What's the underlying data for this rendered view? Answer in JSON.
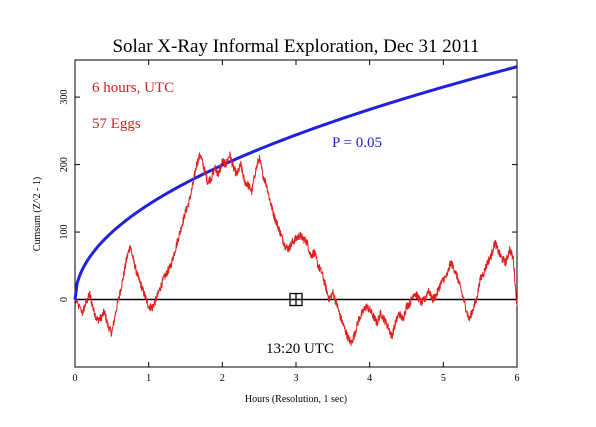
{
  "chart_data": {
    "type": "line",
    "title": "Solar X-Ray Informal Exploration, Dec 31 2011",
    "xlabel": "Hours (Resolution, 1 sec)",
    "ylabel": "Cumsum (Z^2 - 1)",
    "xlim": [
      0,
      6
    ],
    "ylim": [
      -100,
      355
    ],
    "x_ticks": [
      "0",
      "1",
      "2",
      "3",
      "4",
      "5",
      "6"
    ],
    "y_ticks": [
      "0",
      "100",
      "200",
      "300"
    ],
    "grid": false,
    "annotations": {
      "hours": "6 hours, UTC",
      "eggs": "57 Eggs",
      "p_label": "P = 0.05",
      "time_label": "13:20 UTC"
    },
    "marker": {
      "x": 3,
      "y": 0
    },
    "series": [
      {
        "color": "#e02020",
        "x": [
          0,
          0.1,
          0.15,
          0.2,
          0.25,
          0.3,
          0.35,
          0.4,
          0.45,
          0.5,
          0.55,
          0.6,
          0.65,
          0.7,
          0.75,
          0.8,
          0.85,
          0.9,
          0.95,
          1.0,
          1.05,
          1.1,
          1.15,
          1.2,
          1.25,
          1.3,
          1.35,
          1.4,
          1.45,
          1.5,
          1.55,
          1.6,
          1.65,
          1.7,
          1.75,
          1.8,
          1.85,
          1.9,
          1.95,
          2.0,
          2.05,
          2.1,
          2.15,
          2.2,
          2.25,
          2.3,
          2.35,
          2.4,
          2.45,
          2.5,
          2.55,
          2.6,
          2.65,
          2.7,
          2.75,
          2.8,
          2.85,
          2.9,
          2.95,
          3.0,
          3.05,
          3.1,
          3.15,
          3.2,
          3.25,
          3.3,
          3.35,
          3.4,
          3.45,
          3.5,
          3.55,
          3.6,
          3.65,
          3.7,
          3.75,
          3.8,
          3.85,
          3.9,
          3.95,
          4.0,
          4.05,
          4.1,
          4.15,
          4.2,
          4.25,
          4.3,
          4.35,
          4.4,
          4.45,
          4.5,
          4.55,
          4.6,
          4.65,
          4.7,
          4.75,
          4.8,
          4.85,
          4.9,
          4.95,
          5.0,
          5.05,
          5.1,
          5.15,
          5.2,
          5.25,
          5.3,
          5.35,
          5.4,
          5.45,
          5.5,
          5.55,
          5.6,
          5.65,
          5.7,
          5.75,
          5.8,
          5.85,
          5.9,
          5.95,
          6.0
        ],
        "values": [
          0,
          -20,
          -5,
          8,
          -15,
          -30,
          -28,
          -18,
          -40,
          -50,
          -20,
          5,
          30,
          60,
          80,
          55,
          35,
          20,
          5,
          -10,
          -12,
          0,
          15,
          30,
          40,
          50,
          70,
          90,
          110,
          130,
          145,
          170,
          200,
          215,
          195,
          175,
          180,
          195,
          185,
          205,
          200,
          215,
          195,
          185,
          200,
          175,
          170,
          160,
          190,
          210,
          185,
          170,
          145,
          125,
          110,
          95,
          80,
          75,
          85,
          90,
          95,
          90,
          85,
          65,
          70,
          50,
          40,
          20,
          0,
          10,
          -5,
          -25,
          -40,
          -55,
          -65,
          -50,
          -30,
          -20,
          -10,
          -15,
          -25,
          -35,
          -20,
          -30,
          -40,
          -55,
          -35,
          -20,
          -30,
          -10,
          -5,
          10,
          5,
          -5,
          0,
          15,
          0,
          5,
          20,
          30,
          35,
          55,
          45,
          30,
          10,
          -10,
          -30,
          -15,
          0,
          30,
          40,
          55,
          65,
          85,
          70,
          60,
          55,
          75,
          60,
          -10
        ]
      },
      {
        "name": "P = 0.05",
        "color": "#2020e0",
        "curve": "sqrt",
        "x": [
          0,
          6
        ],
        "values": [
          0,
          345
        ]
      },
      {
        "color": "#000000",
        "x": [
          0,
          6
        ],
        "values": [
          0,
          0
        ]
      }
    ]
  }
}
